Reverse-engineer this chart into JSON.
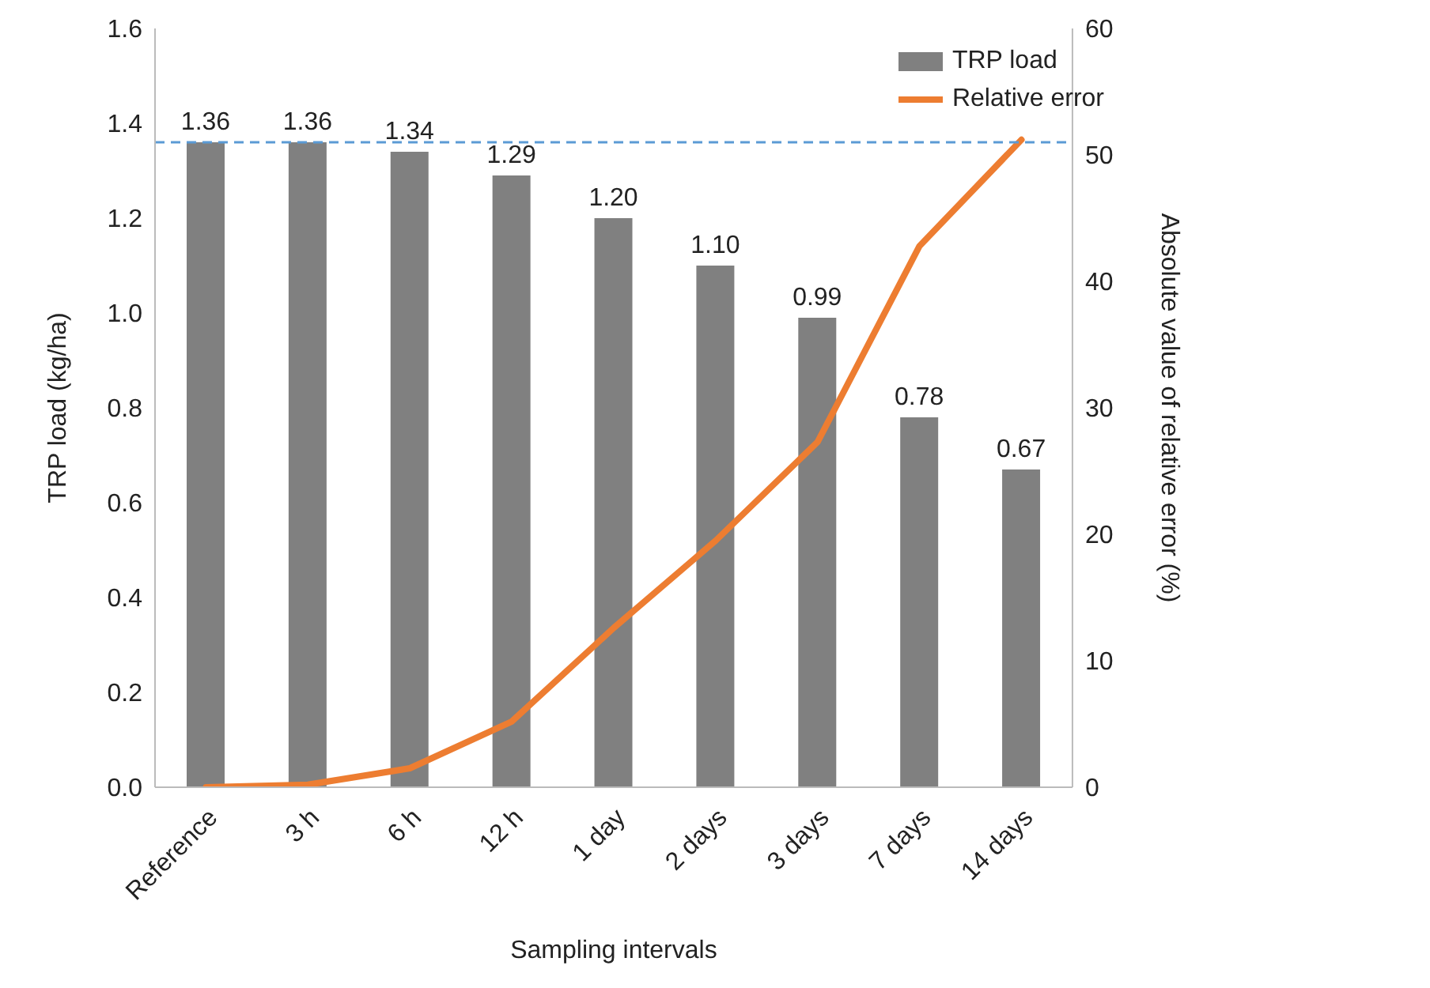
{
  "chart_data": {
    "type": "bar",
    "xlabel": "Sampling intervals",
    "ylabel": "TRP load (kg/ha)",
    "y2label": "Absolute value of relative error (%)",
    "categories": [
      "Reference",
      "3 h",
      "6 h",
      "12 h",
      "1 day",
      "2 days",
      "3 days",
      "7 days",
      "14 days"
    ],
    "series": [
      {
        "name": "TRP load",
        "color": "#808080",
        "values": [
          1.36,
          1.36,
          1.34,
          1.29,
          1.2,
          1.1,
          0.99,
          0.78,
          0.67
        ],
        "value_labels": [
          "1.36",
          "1.36",
          "1.34",
          "1.29",
          "1.20",
          "1.10",
          "0.99",
          "0.78",
          "0.67"
        ]
      },
      {
        "name": "Relative error",
        "type": "line",
        "axis": "y2",
        "color": "#ed7d31",
        "marker": "none",
        "values": [
          0,
          0.2,
          1.5,
          5.2,
          12.6,
          19.5,
          27.3,
          42.8,
          51.2
        ]
      }
    ],
    "ylim": [
      0,
      1.6
    ],
    "yticks": [
      {
        "value": 0,
        "label": "0.0"
      },
      {
        "value": 0.2,
        "label": "0.2"
      },
      {
        "value": 0.4,
        "label": "0.4"
      },
      {
        "value": 0.6,
        "label": "0.6"
      },
      {
        "value": 0.8,
        "label": "0.8"
      },
      {
        "value": 1,
        "label": "1.0"
      },
      {
        "value": 1.2,
        "label": "1.2"
      },
      {
        "value": 1.4,
        "label": "1.4"
      },
      {
        "value": 1.6,
        "label": "1.6"
      }
    ],
    "y2lim": [
      0,
      60
    ],
    "y2ticks": [
      0,
      10,
      20,
      30,
      40,
      50,
      60
    ],
    "ref_lines": [
      {
        "axis": "y",
        "value": 1.36,
        "color": "#5b9bd5",
        "line_style": "dashed"
      }
    ],
    "legend": "top right",
    "grid": false
  }
}
